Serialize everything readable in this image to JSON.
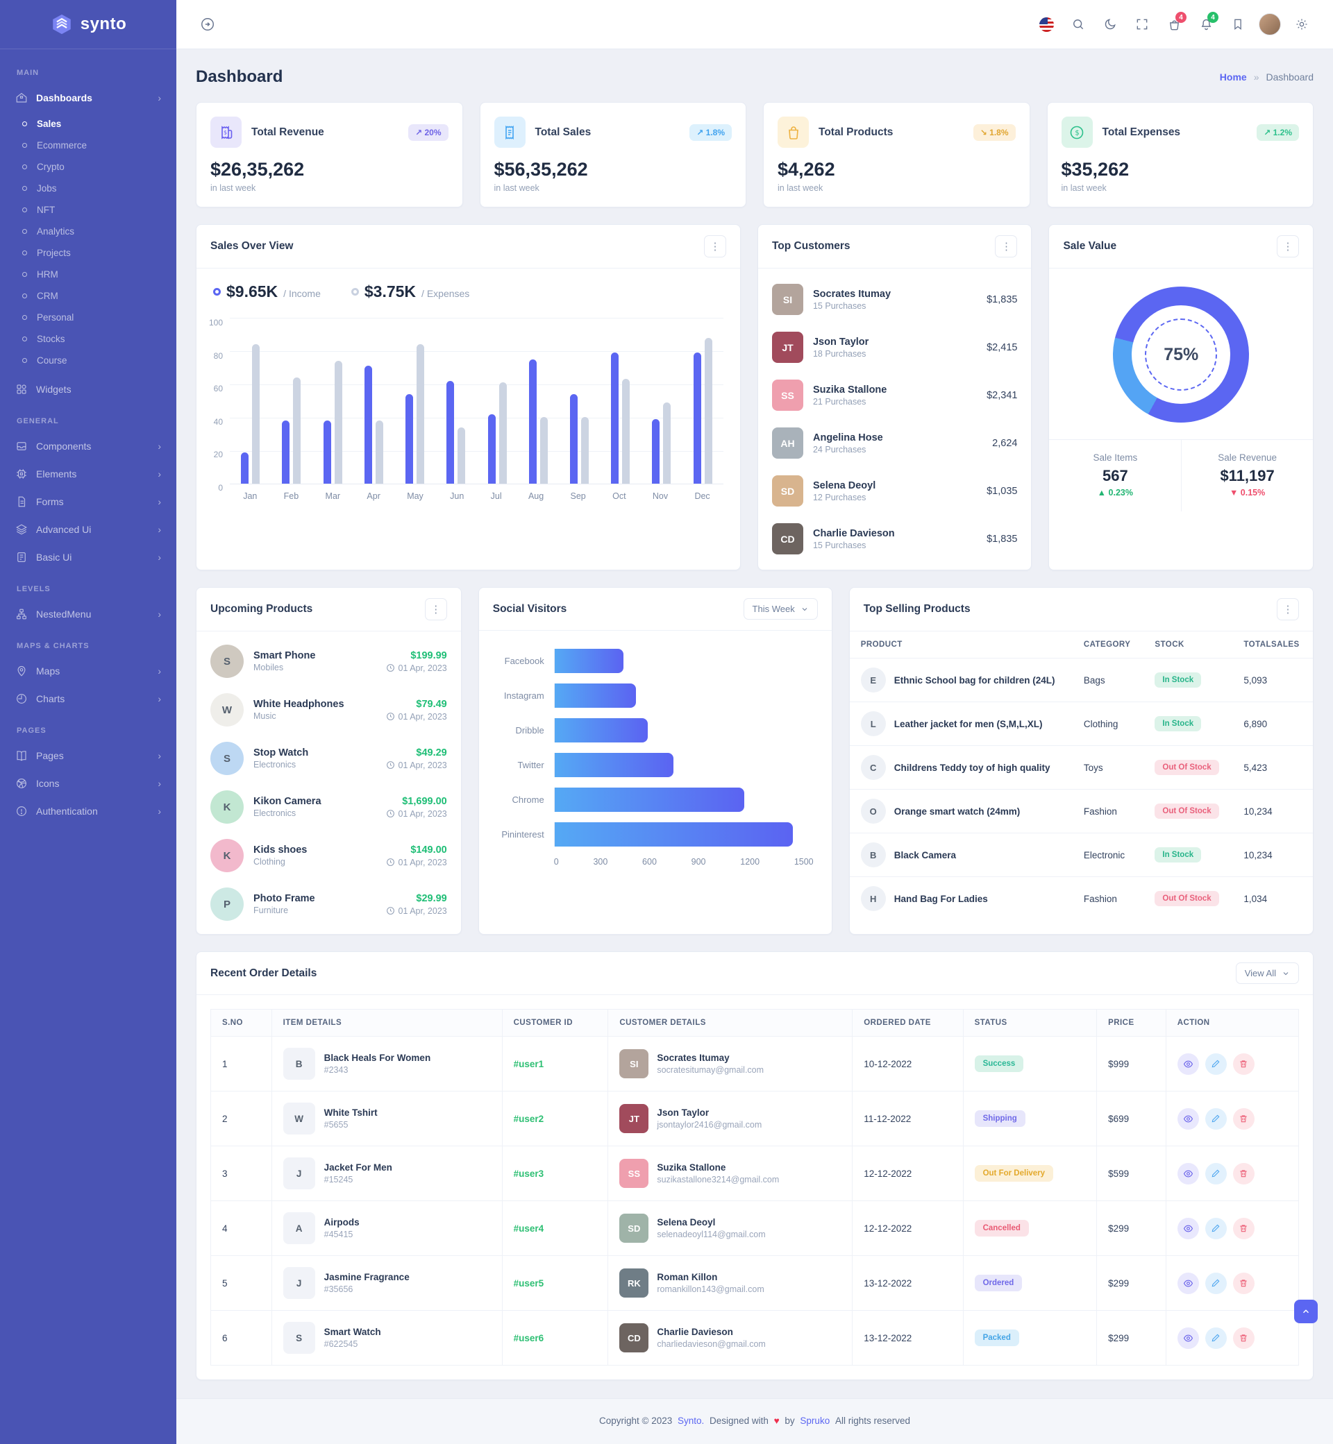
{
  "brand": {
    "name": "synto"
  },
  "icons": {
    "more_menu": "⋮",
    "chevron_right": "›",
    "breadcrumb_sep": "»",
    "heart": "♥",
    "up_triangle": "▲",
    "down_triangle": "▼",
    "trend_up": "↗",
    "trend_down": "↘"
  },
  "colors": {
    "primary": "#5b66f2",
    "sidebar_bg": "#4a54b4",
    "info": "#44a5f2",
    "success": "#2cc08b",
    "warning": "#eeb13f",
    "danger": "#ee4f6d",
    "page_bg": "#eef0f6",
    "expense_bar": "#ccd4e2"
  },
  "topbar": {
    "cart_count": "4",
    "bell_count": "4"
  },
  "sidebar": {
    "section_main": "MAIN",
    "dashboards": "Dashboards",
    "sub": [
      "Sales",
      "Ecommerce",
      "Crypto",
      "Jobs",
      "NFT",
      "Analytics",
      "Projects",
      "HRM",
      "CRM",
      "Personal",
      "Stocks",
      "Course"
    ],
    "widgets": "Widgets",
    "section_general": "GENERAL",
    "general": [
      "Components",
      "Elements",
      "Forms",
      "Advanced Ui",
      "Basic Ui"
    ],
    "section_levels": "LEVELS",
    "nestedmenu": "NestedMenu",
    "section_maps": "MAPS & CHARTS",
    "maps": "Maps",
    "charts": "Charts",
    "section_pages": "PAGES",
    "pages": "Pages",
    "icons_item": "Icons",
    "authentication": "Authentication"
  },
  "page": {
    "title": "Dashboard",
    "breadcrumb_home": "Home",
    "breadcrumb_current": "Dashboard"
  },
  "stats": [
    {
      "title": "Total Revenue",
      "value": "$26,35,262",
      "sub": "in last week",
      "delta": "20%",
      "arrow": "↗"
    },
    {
      "title": "Total Sales",
      "value": "$56,35,262",
      "sub": "in last week",
      "delta": "1.8%",
      "arrow": "↗"
    },
    {
      "title": "Total Products",
      "value": "$4,262",
      "sub": "in last week",
      "delta": "1.8%",
      "arrow": "↘"
    },
    {
      "title": "Total Expenses",
      "value": "$35,262",
      "sub": "in last week",
      "delta": "1.2%",
      "arrow": "↗"
    }
  ],
  "sales_overview": {
    "title": "Sales Over View",
    "legend": [
      {
        "value": "$9.65K",
        "label": "/ Income"
      },
      {
        "value": "$3.75K",
        "label": "/ Expenses"
      }
    ],
    "chart": {
      "type": "bar",
      "categories": [
        "Jan",
        "Feb",
        "Mar",
        "Apr",
        "May",
        "Jun",
        "Jul",
        "Aug",
        "Sep",
        "Oct",
        "Nov",
        "Dec"
      ],
      "income": [
        19,
        38,
        38,
        71,
        54,
        62,
        42,
        75,
        54,
        79,
        39,
        79
      ],
      "expenses": [
        84,
        64,
        74,
        38,
        84,
        34,
        61,
        40,
        40,
        63,
        49,
        88
      ],
      "ylim": [
        0,
        100
      ],
      "yticks": [
        "100",
        "80",
        "60",
        "40",
        "20",
        "0"
      ]
    }
  },
  "top_customers": {
    "title": "Top Customers",
    "items": [
      {
        "name": "Socrates Itumay",
        "purchases": "15 Purchases",
        "amount": "$1,835",
        "initials": "SI",
        "color": "#b3a49c"
      },
      {
        "name": "Json Taylor",
        "purchases": "18 Purchases",
        "amount": "$2,415",
        "initials": "JT",
        "color": "#a14b5c"
      },
      {
        "name": "Suzika Stallone",
        "purchases": "21 Purchases",
        "amount": "$2,341",
        "initials": "SS",
        "color": "#ef9fae"
      },
      {
        "name": "Angelina Hose",
        "purchases": "24 Purchases",
        "amount": "2,624",
        "initials": "AH",
        "color": "#a9b2ba"
      },
      {
        "name": "Selena Deoyl",
        "purchases": "12 Purchases",
        "amount": "$1,035",
        "initials": "SD",
        "color": "#d8b48e"
      },
      {
        "name": "Charlie Davieson",
        "purchases": "15 Purchases",
        "amount": "$1,835",
        "initials": "CD",
        "color": "#6d6460"
      }
    ]
  },
  "sale_value": {
    "title": "Sale Value",
    "percent": "75%",
    "donut": {
      "type": "pie",
      "segments": [
        {
          "color": "#5b66f2",
          "pct": 58
        },
        {
          "color": "#54a4f4",
          "pct": 21
        },
        {
          "color": "#5b66f2",
          "pct": 21
        }
      ]
    },
    "items": [
      {
        "label": "Sale Items",
        "value": "567",
        "arrow": "▲",
        "delta": "0.23%",
        "dir": "up"
      },
      {
        "label": "Sale Revenue",
        "value": "$11,197",
        "arrow": "▼",
        "delta": "0.15%",
        "dir": "down"
      }
    ]
  },
  "upcoming_products": {
    "title": "Upcoming Products",
    "items": [
      {
        "name": "Smart Phone",
        "category": "Mobiles",
        "price": "$199.99",
        "date": "01 Apr, 2023",
        "initial": "S",
        "color": "#cfc9c0"
      },
      {
        "name": "White Headphones",
        "category": "Music",
        "price": "$79.49",
        "date": "01 Apr, 2023",
        "initial": "W",
        "color": "#efeeea"
      },
      {
        "name": "Stop Watch",
        "category": "Electronics",
        "price": "$49.29",
        "date": "01 Apr, 2023",
        "initial": "S",
        "color": "#bdd8f3"
      },
      {
        "name": "Kikon Camera",
        "category": "Electronics",
        "price": "$1,699.00",
        "date": "01 Apr, 2023",
        "initial": "K",
        "color": "#c2e7d2"
      },
      {
        "name": "Kids shoes",
        "category": "Clothing",
        "price": "$149.00",
        "date": "01 Apr, 2023",
        "initial": "K",
        "color": "#f2b9cc"
      },
      {
        "name": "Photo Frame",
        "category": "Furniture",
        "price": "$29.99",
        "date": "01 Apr, 2023",
        "initial": "P",
        "color": "#cde9e4"
      }
    ]
  },
  "social_visitors": {
    "title": "Social Visitors",
    "filter": "This Week",
    "chart": {
      "type": "bar",
      "orientation": "horizontal",
      "categories": [
        "Facebook",
        "Instagram",
        "Dribble",
        "Twitter",
        "Chrome",
        "Pininterest"
      ],
      "values": [
        400,
        470,
        540,
        690,
        1100,
        1380
      ],
      "xlim": [
        0,
        1500
      ],
      "xticks": [
        "0",
        "300",
        "600",
        "900",
        "1200",
        "1500"
      ]
    }
  },
  "top_selling": {
    "title": "Top Selling Products",
    "headers": [
      "PRODUCT",
      "CATEGORY",
      "STOCK",
      "TOTALSALES"
    ],
    "rows": [
      {
        "name": "Ethnic School bag for children (24L)",
        "initial": "E",
        "category": "Bags",
        "stock": "In Stock",
        "stock_variant": "in",
        "sales": "5,093"
      },
      {
        "name": "Leather jacket for men (S,M,L,XL)",
        "initial": "L",
        "category": "Clothing",
        "stock": "In Stock",
        "stock_variant": "in",
        "sales": "6,890"
      },
      {
        "name": "Childrens Teddy toy of high quality",
        "initial": "C",
        "category": "Toys",
        "stock": "Out Of Stock",
        "stock_variant": "out",
        "sales": "5,423"
      },
      {
        "name": "Orange smart watch (24mm)",
        "initial": "O",
        "category": "Fashion",
        "stock": "Out Of Stock",
        "stock_variant": "out",
        "sales": "10,234"
      },
      {
        "name": "Black Camera",
        "initial": "B",
        "category": "Electronic",
        "stock": "In Stock",
        "stock_variant": "in",
        "sales": "10,234"
      },
      {
        "name": "Hand Bag For Ladies",
        "initial": "H",
        "category": "Fashion",
        "stock": "Out Of Stock",
        "stock_variant": "out",
        "sales": "1,034"
      }
    ]
  },
  "recent_orders": {
    "title": "Recent Order Details",
    "view_all": "View All",
    "headers": [
      "S.NO",
      "ITEM DETAILS",
      "CUSTOMER ID",
      "CUSTOMER DETAILS",
      "ORDERED DATE",
      "STATUS",
      "PRICE",
      "ACTION"
    ],
    "rows": [
      {
        "sno": "1",
        "item": "Black Heals For Women",
        "item_id": "#2343",
        "item_initial": "B",
        "customer_id": "#user1",
        "customer": "Socrates Itumay",
        "email": "socratesitumay@gmail.com",
        "initials": "SI",
        "color": "#b3a49c",
        "date": "10-12-2022",
        "status": "Success",
        "status_variant": "success",
        "price": "$999"
      },
      {
        "sno": "2",
        "item": "White Tshirt",
        "item_id": "#5655",
        "item_initial": "W",
        "customer_id": "#user2",
        "customer": "Json Taylor",
        "email": "jsontaylor2416@gmail.com",
        "initials": "JT",
        "color": "#a14b5c",
        "date": "11-12-2022",
        "status": "Shipping",
        "status_variant": "shipping",
        "price": "$699"
      },
      {
        "sno": "3",
        "item": "Jacket For Men",
        "item_id": "#15245",
        "item_initial": "J",
        "customer_id": "#user3",
        "customer": "Suzika Stallone",
        "email": "suzikastallone3214@gmail.com",
        "initials": "SS",
        "color": "#ef9fae",
        "date": "12-12-2022",
        "status": "Out For Delivery",
        "status_variant": "warning",
        "price": "$599"
      },
      {
        "sno": "4",
        "item": "Airpods",
        "item_id": "#45415",
        "item_initial": "A",
        "customer_id": "#user4",
        "customer": "Selena Deoyl",
        "email": "selenadeoyl114@gmail.com",
        "initials": "SD",
        "color": "#9fb3a8",
        "date": "12-12-2022",
        "status": "Cancelled",
        "status_variant": "danger",
        "price": "$299"
      },
      {
        "sno": "5",
        "item": "Jasmine Fragrance",
        "item_id": "#35656",
        "item_initial": "J",
        "customer_id": "#user5",
        "customer": "Roman Killon",
        "email": "romankillon143@gmail.com",
        "initials": "RK",
        "color": "#6f7d86",
        "date": "13-12-2022",
        "status": "Ordered",
        "status_variant": "ordered",
        "price": "$299"
      },
      {
        "sno": "6",
        "item": "Smart Watch",
        "item_id": "#622545",
        "item_initial": "S",
        "customer_id": "#user6",
        "customer": "Charlie Davieson",
        "email": "charliedavieson@gmail.com",
        "initials": "CD",
        "color": "#6d6460",
        "date": "13-12-2022",
        "status": "Packed",
        "status_variant": "packed",
        "price": "$299"
      }
    ]
  },
  "footer": {
    "copyright": "Copyright © 2023",
    "brand": "Synto.",
    "designed": "Designed with",
    "heart": "♥",
    "by": "by",
    "author": "Spruko",
    "suffix": "All rights reserved"
  }
}
